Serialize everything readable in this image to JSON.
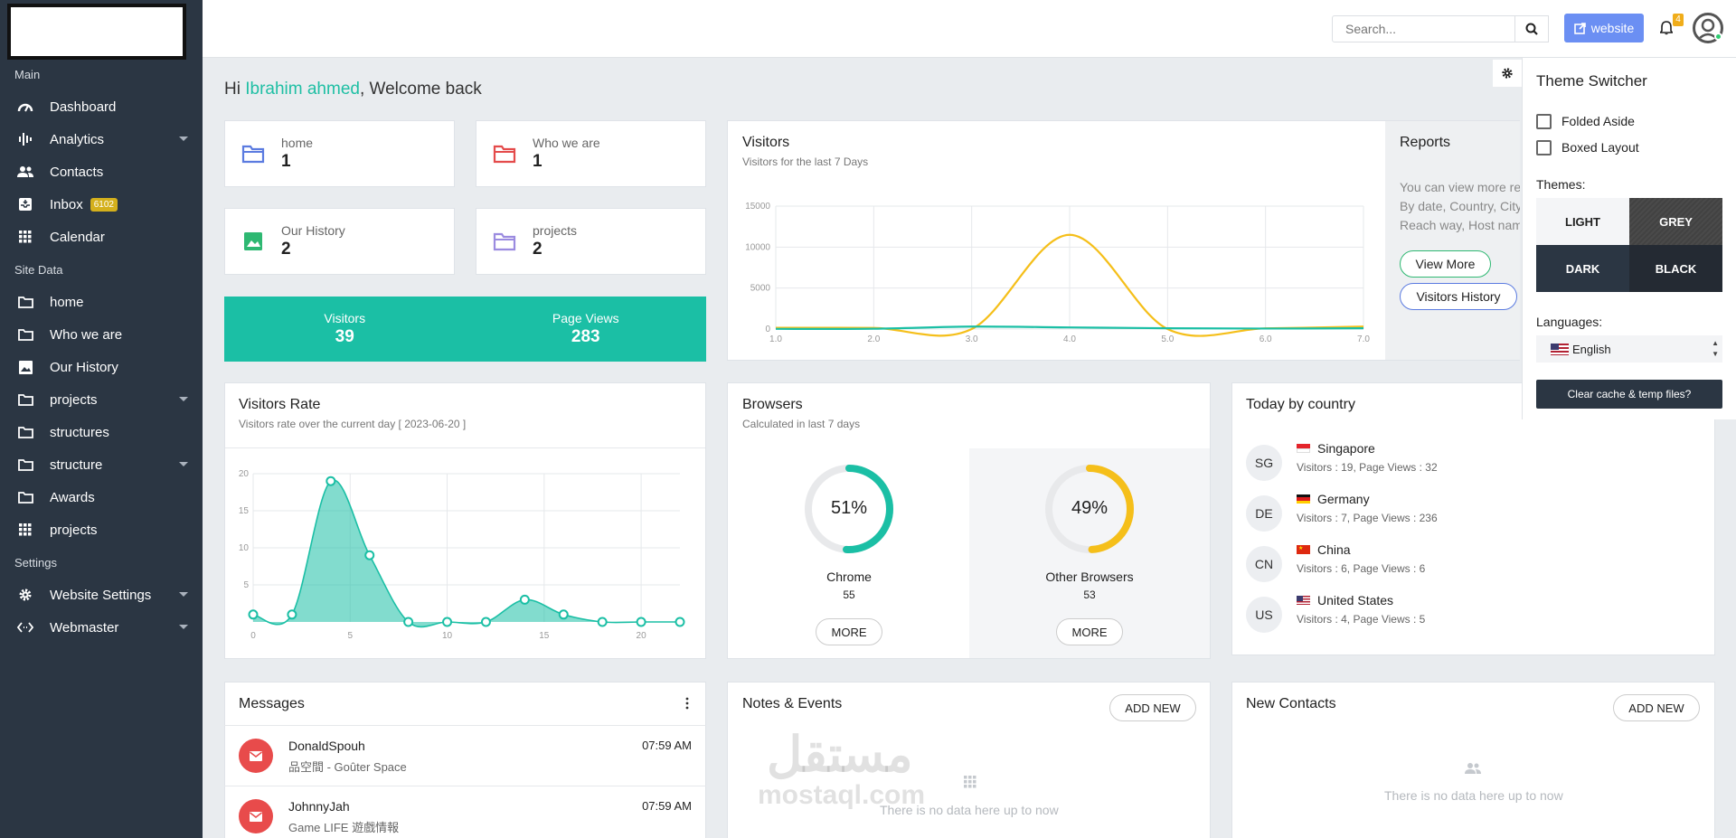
{
  "sidebar": {
    "sections": {
      "main": "Main",
      "site_data": "Site Data",
      "settings": "Settings"
    },
    "items": [
      {
        "label": "Dashboard",
        "icon": "dashboard-gauge-icon"
      },
      {
        "label": "Analytics",
        "icon": "analytics-bars-icon"
      },
      {
        "label": "Contacts",
        "icon": "contacts-people-icon"
      },
      {
        "label": "Inbox",
        "icon": "inbox-icon",
        "badge": "6102"
      },
      {
        "label": "Calendar",
        "icon": "calendar-grid-icon"
      },
      {
        "label": "home",
        "icon": "folder-icon"
      },
      {
        "label": "Who we are",
        "icon": "folder-icon"
      },
      {
        "label": "Our History",
        "icon": "image-icon"
      },
      {
        "label": "projects",
        "icon": "folder-icon"
      },
      {
        "label": "structures",
        "icon": "folder-icon"
      },
      {
        "label": "structure",
        "icon": "folder-icon"
      },
      {
        "label": "Awards",
        "icon": "folder-icon"
      },
      {
        "label": "projects",
        "icon": "grid-icon"
      },
      {
        "label": "Website Settings",
        "icon": "gear-icon"
      },
      {
        "label": "Webmaster",
        "icon": "code-icon"
      }
    ]
  },
  "topbar": {
    "search_placeholder": "Search...",
    "website_label": "website",
    "notifications_count": "4"
  },
  "welcome": {
    "prefix": "Hi ",
    "name": "Ibrahim ahmed",
    "suffix": ", Welcome back"
  },
  "stats": [
    {
      "label": "home",
      "value": "1",
      "color": "#5b7be0"
    },
    {
      "label": "Who we are",
      "value": "1",
      "color": "#e44b4b"
    },
    {
      "label": "Our History",
      "value": "2",
      "color": "#2eb872"
    },
    {
      "label": "projects",
      "value": "2",
      "color": "#9b8be0"
    }
  ],
  "traffic": {
    "visitors_label": "Visitors",
    "visitors_value": "39",
    "pageviews_label": "Page Views",
    "pageviews_value": "283"
  },
  "visitors_chart": {
    "title": "Visitors",
    "subtitle": "Visitors for the last 7 Days"
  },
  "reports": {
    "title": "Reports",
    "text_line1": "You can view more rep",
    "text_line2": "By date, Country, City,",
    "text_line3": "Reach way, Host name",
    "view_more": "View More",
    "visitors_history": "Visitors History"
  },
  "visitors_rate": {
    "title": "Visitors Rate",
    "subtitle": "Visitors rate over the current day [ 2023-06-20 ]"
  },
  "browsers": {
    "title": "Browsers",
    "subtitle": "Calculated in last 7 days",
    "items": [
      {
        "name": "Chrome",
        "percent": "51%",
        "count": "55",
        "fraction": 0.51,
        "color": "#1bbfa5",
        "more": "MORE"
      },
      {
        "name": "Other Browsers",
        "percent": "49%",
        "count": "53",
        "fraction": 0.49,
        "color": "#f5bf1a",
        "more": "MORE"
      }
    ]
  },
  "country": {
    "title": "Today by country",
    "items": [
      {
        "code": "SG",
        "name": "Singapore",
        "stats": "Visitors : 19, Page Views : 32"
      },
      {
        "code": "DE",
        "name": "Germany",
        "stats": "Visitors : 7, Page Views : 236"
      },
      {
        "code": "CN",
        "name": "China",
        "stats": "Visitors : 6, Page Views : 6"
      },
      {
        "code": "US",
        "name": "United States",
        "stats": "Visitors : 4, Page Views : 5"
      }
    ]
  },
  "messages": {
    "title": "Messages",
    "items": [
      {
        "name": "DonaldSpouh",
        "text": "品空間 - Goûter Space",
        "time": "07:59 AM"
      },
      {
        "name": "JohnnyJah",
        "text": "Game LIFE 遊戲情報",
        "time": "07:59 AM"
      }
    ]
  },
  "notes": {
    "title": "Notes & Events",
    "add_new": "ADD NEW",
    "empty": "There is no data here up to now"
  },
  "contacts": {
    "title": "New Contacts",
    "add_new": "ADD NEW",
    "empty": "There is no data here up to now"
  },
  "theme_switcher": {
    "title": "Theme Switcher",
    "folded_aside": "Folded Aside",
    "boxed_layout": "Boxed Layout",
    "themes_label": "Themes:",
    "themes": [
      "LIGHT",
      "GREY",
      "DARK",
      "BLACK"
    ],
    "languages_label": "Languages:",
    "language": "English",
    "clear_cache": "Clear cache & temp files?"
  },
  "watermark": {
    "line1": "مستقل",
    "line2": "mostaql.com"
  },
  "chart_data": [
    {
      "type": "line",
      "title": "Visitors",
      "x": [
        1.0,
        2.0,
        3.0,
        4.0,
        5.0,
        6.0,
        7.0
      ],
      "xticks": [
        "1.0",
        "2.0",
        "3.0",
        "4.0",
        "5.0",
        "6.0",
        "7.0"
      ],
      "yticks": [
        "0",
        "5000",
        "10000",
        "15000"
      ],
      "ylim": [
        0,
        15000
      ],
      "series": [
        {
          "name": "Page Views",
          "color": "#f5bf1a",
          "values": [
            150,
            140,
            0,
            11500,
            0,
            80,
            300
          ]
        },
        {
          "name": "Visitors",
          "color": "#1bbfa5",
          "values": [
            20,
            40,
            300,
            200,
            100,
            60,
            100
          ]
        }
      ]
    },
    {
      "type": "area",
      "title": "Visitors Rate",
      "x": [
        0,
        2,
        4,
        6,
        8,
        10,
        12,
        14,
        16,
        18,
        20,
        22
      ],
      "values": [
        1,
        1,
        19,
        9,
        0,
        0,
        0,
        3,
        1,
        0,
        0,
        0
      ],
      "xticks": [
        "0",
        "5",
        "10",
        "15",
        "20"
      ],
      "yticks": [
        "5",
        "10",
        "15",
        "20"
      ],
      "ylim": [
        0,
        20
      ],
      "color": "#1bbfa5"
    }
  ]
}
